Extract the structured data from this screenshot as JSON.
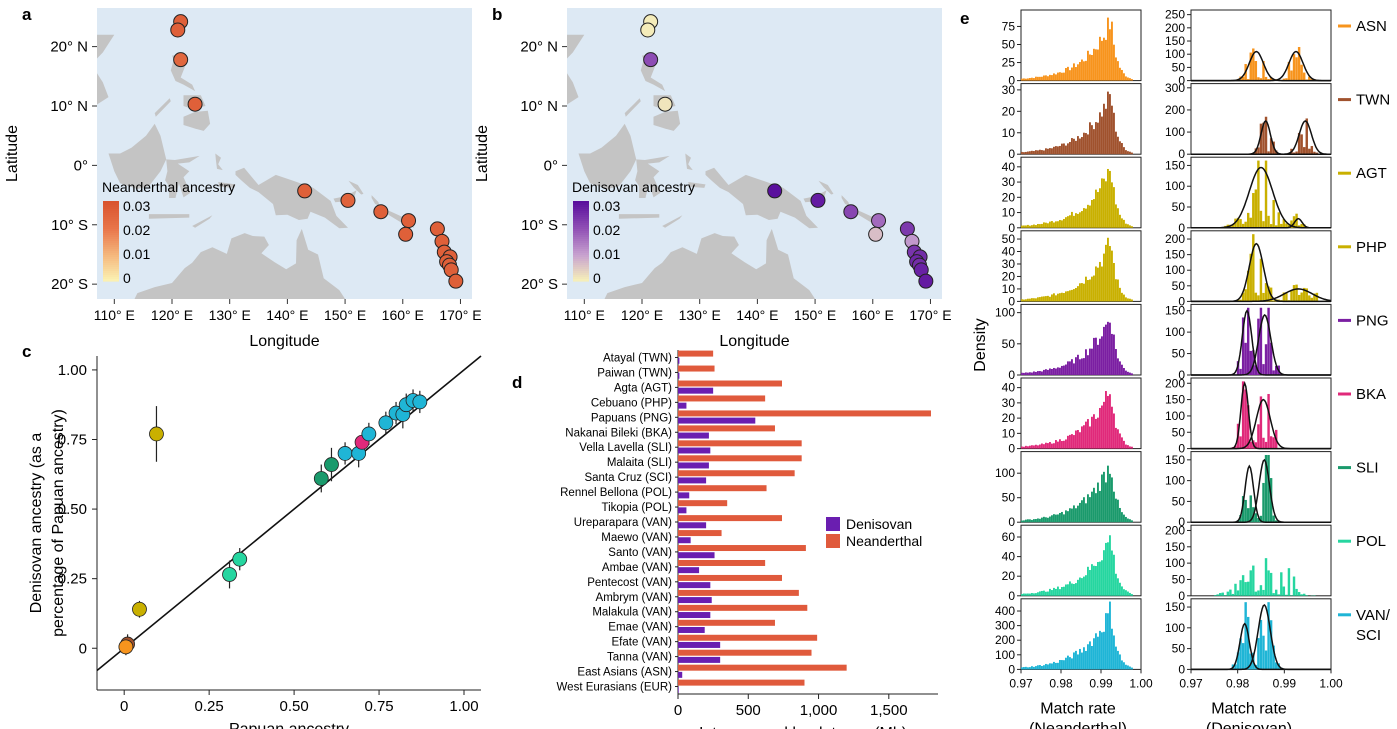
{
  "panels": {
    "a": "a",
    "b": "b",
    "c": "c",
    "d": "d",
    "e": "e"
  },
  "colors": {
    "ocean": "#dde9f4",
    "land": "#c4c4c4",
    "denisovan": "#6a1eb0",
    "neanderthal": "#e05a3c",
    "ASN": "#f7941d",
    "TWN": "#a0522d",
    "AGT": "#c9b000",
    "PHP": "#c9b000",
    "PNG": "#7b1fa2",
    "BKA": "#e0297a",
    "SLI": "#1a9a6c",
    "POL": "#26d6a0",
    "VAN": "#1fb5d6"
  },
  "maps": {
    "ylabel": "Latitude",
    "xlabel": "Longitude",
    "lat_ticks": [
      "20° N",
      "10° N",
      "0°",
      "10° S",
      "20° S"
    ],
    "lon_ticks": [
      "110° E",
      "120° E",
      "130° E",
      "140° E",
      "150° E",
      "160° E",
      "170° E"
    ],
    "neanderthal": {
      "legend_title": "Neanderthal ancestry",
      "legend_ticks": [
        "0.03",
        "0.02",
        "0.01",
        "0"
      ],
      "points": [
        {
          "lon": 121.5,
          "lat": 24.2,
          "v": 0.028
        },
        {
          "lon": 121,
          "lat": 22.8,
          "v": 0.028
        },
        {
          "lon": 121.5,
          "lat": 17.8,
          "v": 0.026
        },
        {
          "lon": 124,
          "lat": 10.3,
          "v": 0.028
        },
        {
          "lon": 143,
          "lat": -4.3,
          "v": 0.028
        },
        {
          "lon": 150.5,
          "lat": -5.9,
          "v": 0.027
        },
        {
          "lon": 156.2,
          "lat": -7.8,
          "v": 0.028
        },
        {
          "lon": 161,
          "lat": -9.3,
          "v": 0.028
        },
        {
          "lon": 160.5,
          "lat": -11.6,
          "v": 0.028
        },
        {
          "lon": 166,
          "lat": -10.7,
          "v": 0.028
        },
        {
          "lon": 166.8,
          "lat": -12.8,
          "v": 0.028
        },
        {
          "lon": 167.2,
          "lat": -14.6,
          "v": 0.028
        },
        {
          "lon": 168.2,
          "lat": -15.4,
          "v": 0.028
        },
        {
          "lon": 167.6,
          "lat": -16.2,
          "v": 0.028
        },
        {
          "lon": 168.1,
          "lat": -16.8,
          "v": 0.028
        },
        {
          "lon": 168.4,
          "lat": -17.6,
          "v": 0.028
        },
        {
          "lon": 169.2,
          "lat": -19.5,
          "v": 0.028
        }
      ]
    },
    "denisovan": {
      "legend_title": "Denisovan ancestry",
      "legend_ticks": [
        "0.03",
        "0.02",
        "0.01",
        "0"
      ],
      "points": [
        {
          "lon": 121.5,
          "lat": 24.2,
          "v": 0.001
        },
        {
          "lon": 121,
          "lat": 22.8,
          "v": 0.001
        },
        {
          "lon": 121.5,
          "lat": 17.8,
          "v": 0.022
        },
        {
          "lon": 124,
          "lat": 10.3,
          "v": 0.002
        },
        {
          "lon": 143,
          "lat": -4.3,
          "v": 0.032
        },
        {
          "lon": 150.5,
          "lat": -5.9,
          "v": 0.03
        },
        {
          "lon": 156.2,
          "lat": -7.8,
          "v": 0.023
        },
        {
          "lon": 161,
          "lat": -9.3,
          "v": 0.018
        },
        {
          "lon": 160.5,
          "lat": -11.6,
          "v": 0.007
        },
        {
          "lon": 166,
          "lat": -10.7,
          "v": 0.025
        },
        {
          "lon": 166.8,
          "lat": -12.8,
          "v": 0.012
        },
        {
          "lon": 167.2,
          "lat": -14.6,
          "v": 0.026
        },
        {
          "lon": 168.2,
          "lat": -15.4,
          "v": 0.027
        },
        {
          "lon": 167.6,
          "lat": -16.2,
          "v": 0.028
        },
        {
          "lon": 168.1,
          "lat": -16.8,
          "v": 0.027
        },
        {
          "lon": 168.4,
          "lat": -17.6,
          "v": 0.029
        },
        {
          "lon": 169.2,
          "lat": -19.5,
          "v": 0.03
        }
      ]
    }
  },
  "chart_data": [
    {
      "type": "scatter",
      "xlabel": "Papuan ancestry",
      "ylabel_line1": "Denisovan ancestry (as a",
      "ylabel_line2": "percentage of Papuan ancestry)",
      "xlim": [
        -0.08,
        1.05
      ],
      "ylim": [
        -0.15,
        1.05
      ],
      "x_ticks": [
        "0",
        "0.25",
        "0.50",
        "0.75",
        "1.00"
      ],
      "y_ticks": [
        "0",
        "0.25",
        "0.50",
        "0.75",
        "1.00"
      ],
      "line": [
        [
          -0.08,
          -0.08
        ],
        [
          1.05,
          1.05
        ]
      ],
      "points": [
        {
          "x": 0.01,
          "y": 0.015,
          "err": 0.035,
          "pop": "TWN"
        },
        {
          "x": 0.005,
          "y": 0.005,
          "err": 0.03,
          "pop": "ASN"
        },
        {
          "x": 0.045,
          "y": 0.14,
          "err": 0.03,
          "pop": "AGT"
        },
        {
          "x": 0.095,
          "y": 0.77,
          "err": 0.1,
          "pop": "AGT"
        },
        {
          "x": 0.31,
          "y": 0.265,
          "err": 0.05,
          "pop": "POL"
        },
        {
          "x": 0.34,
          "y": 0.32,
          "err": 0.04,
          "pop": "POL"
        },
        {
          "x": 0.58,
          "y": 0.61,
          "err": 0.05,
          "pop": "SLI"
        },
        {
          "x": 0.61,
          "y": 0.66,
          "err": 0.06,
          "pop": "SLI"
        },
        {
          "x": 0.65,
          "y": 0.7,
          "err": 0.04,
          "pop": "VAN"
        },
        {
          "x": 0.69,
          "y": 0.7,
          "err": 0.05,
          "pop": "VAN"
        },
        {
          "x": 0.7,
          "y": 0.74,
          "err": 0.03,
          "pop": "BKA"
        },
        {
          "x": 0.72,
          "y": 0.77,
          "err": 0.04,
          "pop": "VAN"
        },
        {
          "x": 0.77,
          "y": 0.81,
          "err": 0.04,
          "pop": "VAN"
        },
        {
          "x": 0.8,
          "y": 0.845,
          "err": 0.04,
          "pop": "VAN"
        },
        {
          "x": 0.82,
          "y": 0.84,
          "err": 0.05,
          "pop": "VAN"
        },
        {
          "x": 0.83,
          "y": 0.875,
          "err": 0.04,
          "pop": "VAN"
        },
        {
          "x": 0.85,
          "y": 0.89,
          "err": 0.04,
          "pop": "VAN"
        },
        {
          "x": 0.87,
          "y": 0.885,
          "err": 0.04,
          "pop": "VAN"
        }
      ]
    },
    {
      "type": "bar",
      "xlabel": "Introgressed haplotypes (Mb)",
      "x_ticks": [
        "0",
        "500",
        "1,000",
        "1,500"
      ],
      "xlim": [
        0,
        1850
      ],
      "legend": [
        "Denisovan",
        "Neanderthal"
      ],
      "categories": [
        "Atayal (TWN)",
        "Paiwan (TWN)",
        "Agta (AGT)",
        "Cebuano (PHP)",
        "Papuans (PNG)",
        "Nakanai Bileki (BKA)",
        "Vella Lavella (SLI)",
        "Malaita (SLI)",
        "Santa Cruz (SCI)",
        "Rennel Bellona (POL)",
        "Tikopia (POL)",
        "Ureparapara (VAN)",
        "Maewo (VAN)",
        "Santo (VAN)",
        "Ambae (VAN)",
        "Pentecost (VAN)",
        "Ambrym (VAN)",
        "Malakula (VAN)",
        "Emae (VAN)",
        "Efate (VAN)",
        "Tanna (VAN)",
        "East Asians (ASN)",
        "West Eurasians (EUR)"
      ],
      "series": [
        {
          "name": "Denisovan",
          "values": [
            10,
            10,
            250,
            60,
            550,
            220,
            230,
            220,
            200,
            80,
            60,
            200,
            90,
            260,
            150,
            230,
            240,
            230,
            190,
            300,
            300,
            30,
            5
          ]
        },
        {
          "name": "Neanderthal",
          "values": [
            250,
            260,
            740,
            620,
            1800,
            690,
            880,
            880,
            830,
            630,
            350,
            740,
            310,
            910,
            620,
            740,
            860,
            920,
            690,
            990,
            950,
            1200,
            900
          ]
        }
      ]
    },
    {
      "type": "bar",
      "ylabel": "Density",
      "xlabel_left_line1": "Match rate",
      "xlabel_left_line2": "(Neanderthal)",
      "xlabel_right_line1": "Match rate",
      "xlabel_right_line2": "(Denisovan)",
      "x_ticks": [
        "0.97",
        "0.98",
        "0.99",
        "1.00"
      ],
      "xlim": [
        0.97,
        1.0
      ],
      "rows": [
        {
          "pop": "ASN",
          "label": "ASN",
          "left_ylim": [
            0,
            95
          ],
          "left_ticks": [
            "75",
            "50",
            "25",
            "0"
          ],
          "right_ylim": [
            0,
            260
          ],
          "right_ticks": [
            "250",
            "200",
            "150",
            "100",
            "50",
            "0"
          ],
          "peaks": [
            0.985,
            0.993
          ],
          "curves": [
            {
              "mu": 0.984,
              "sd": 0.0015,
              "h": 110
            },
            {
              "mu": 0.9925,
              "sd": 0.0015,
              "h": 110
            }
          ]
        },
        {
          "pop": "TWN",
          "label": "TWN",
          "left_ylim": [
            0,
            32
          ],
          "left_ticks": [
            "30",
            "20",
            "10",
            "0"
          ],
          "right_ylim": [
            0,
            310
          ],
          "right_ticks": [
            "300",
            "200",
            "100",
            "0"
          ],
          "peaks": [
            0.986,
            0.994
          ],
          "curves": [
            {
              "mu": 0.986,
              "sd": 0.001,
              "h": 150
            },
            {
              "mu": 0.9945,
              "sd": 0.0013,
              "h": 150
            }
          ]
        },
        {
          "pop": "AGT",
          "label": "AGT",
          "left_ylim": [
            0,
            45
          ],
          "left_ticks": [
            "40",
            "30",
            "20",
            "10",
            "0"
          ],
          "right_ylim": [
            0,
            165
          ],
          "right_ticks": [
            "150",
            "100",
            "50",
            "0"
          ],
          "peaks": [
            0.986
          ],
          "curves": [
            {
              "mu": 0.985,
              "sd": 0.0025,
              "h": 145
            },
            {
              "mu": 0.993,
              "sd": 0.0008,
              "h": 22
            }
          ]
        },
        {
          "pop": "PHP",
          "label": "PHP",
          "left_ylim": [
            0,
            55
          ],
          "left_ticks": [
            "50",
            "40",
            "30",
            "20",
            "10",
            "0"
          ],
          "right_ylim": [
            0,
            220
          ],
          "right_ticks": [
            "200",
            "150",
            "100",
            "50",
            "0"
          ],
          "peaks": [
            0.984
          ],
          "curves": [
            {
              "mu": 0.984,
              "sd": 0.0015,
              "h": 185
            },
            {
              "mu": 0.993,
              "sd": 0.003,
              "h": 40
            }
          ]
        },
        {
          "pop": "PNG",
          "label": "PNG",
          "left_ylim": [
            0,
            110
          ],
          "left_ticks": [
            "100",
            "50",
            "0"
          ],
          "right_ylim": [
            0,
            160
          ],
          "right_ticks": [
            "150",
            "100",
            "50",
            "0"
          ],
          "peaks": [
            0.985
          ],
          "curves": [
            {
              "mu": 0.982,
              "sd": 0.001,
              "h": 150
            },
            {
              "mu": 0.9858,
              "sd": 0.0013,
              "h": 140
            }
          ]
        },
        {
          "pop": "BKA",
          "label": "BKA",
          "left_ylim": [
            0,
            45
          ],
          "left_ticks": [
            "40",
            "30",
            "20",
            "10",
            "0"
          ],
          "right_ylim": [
            0,
            210
          ],
          "right_ticks": [
            "200",
            "150",
            "100",
            "50",
            "0"
          ],
          "peaks": [
            0.984
          ],
          "curves": [
            {
              "mu": 0.9815,
              "sd": 0.0008,
              "h": 200
            },
            {
              "mu": 0.9855,
              "sd": 0.0015,
              "h": 150
            }
          ]
        },
        {
          "pop": "SLI",
          "label": "SLI",
          "left_ylim": [
            0,
            140
          ],
          "left_ticks": [
            "100",
            "50",
            "0"
          ],
          "right_ylim": [
            0,
            165
          ],
          "right_ticks": [
            "150",
            "100",
            "50",
            "0"
          ],
          "peaks": [
            0.984
          ],
          "curves": [
            {
              "mu": 0.9825,
              "sd": 0.0009,
              "h": 135
            },
            {
              "mu": 0.9857,
              "sd": 0.0011,
              "h": 150
            }
          ]
        },
        {
          "pop": "POL",
          "label": "POL",
          "left_ylim": [
            0,
            70
          ],
          "left_ticks": [
            "60",
            "40",
            "20",
            "0"
          ],
          "right_ylim": [
            0,
            210
          ],
          "right_ticks": [
            "200",
            "150",
            "100",
            "50",
            "0"
          ],
          "peaks": [
            0.985
          ],
          "curves": []
        },
        {
          "pop": "VAN",
          "label": "VAN/",
          "label2": "SCI",
          "left_ylim": [
            0,
            470
          ],
          "left_ticks": [
            "400",
            "300",
            "200",
            "100",
            "0"
          ],
          "right_ylim": [
            0,
            165
          ],
          "right_ticks": [
            "150",
            "100",
            "50",
            "0"
          ],
          "peaks": [
            0.985
          ],
          "curves": [
            {
              "mu": 0.9815,
              "sd": 0.001,
              "h": 110
            },
            {
              "mu": 0.9857,
              "sd": 0.0013,
              "h": 155
            }
          ]
        }
      ]
    }
  ]
}
